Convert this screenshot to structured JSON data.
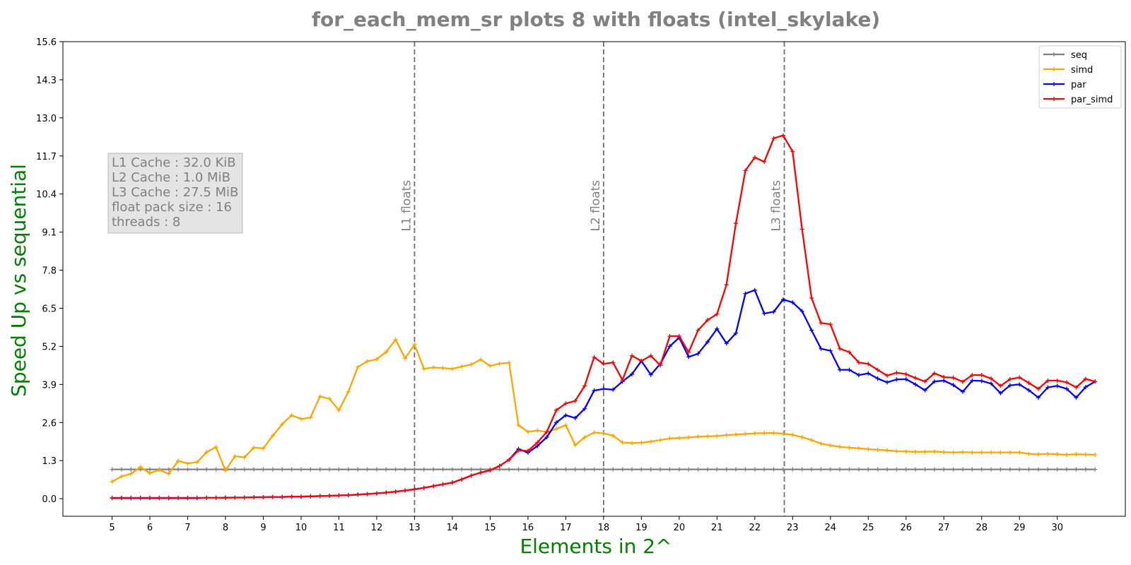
{
  "chart_data": {
    "type": "line",
    "title": "for_each_mem_sr plots 8 with floats  (intel_skylake)",
    "xlabel": "Elements in 2^",
    "ylabel": "Speed Up vs sequential",
    "xlim": [
      3.7,
      31.8
    ],
    "ylim": [
      -0.6,
      15.6
    ],
    "xticks": [
      5,
      6,
      7,
      8,
      9,
      10,
      11,
      12,
      13,
      14,
      15,
      16,
      17,
      18,
      19,
      20,
      21,
      22,
      23,
      24,
      25,
      26,
      27,
      28,
      29,
      30
    ],
    "yticks": [
      0.0,
      1.3,
      2.6,
      3.9,
      5.2,
      6.5,
      7.8,
      9.1,
      10.4,
      11.7,
      13.0,
      14.3,
      15.6
    ],
    "ytick_labels": [
      "0.0",
      "1.3",
      "2.6",
      "3.9",
      "5.2",
      "6.5",
      "7.8",
      "9.1",
      "10.4",
      "11.7",
      "13.0",
      "14.3",
      "15.6"
    ],
    "legend_position": "top-right",
    "grid": false,
    "x_start": 5,
    "x_step": 0.25,
    "vlines": [
      {
        "x": 13,
        "label": "L1 floats"
      },
      {
        "x": 18,
        "label": "L2 floats"
      },
      {
        "x": 22.78,
        "label": "L3 floats"
      }
    ],
    "info_box": [
      "L1 Cache : 32.0 KiB",
      "L2 Cache : 1.0 MiB",
      "L3 Cache : 27.5 MiB",
      "float pack size : 16",
      "threads : 8"
    ],
    "series": [
      {
        "name": "seq",
        "color": "#808080",
        "values": [
          1.0,
          1.0,
          1.0,
          1.0,
          1.0,
          1.0,
          1.0,
          1.0,
          1.0,
          1.0,
          1.0,
          1.0,
          1.0,
          1.0,
          1.0,
          1.0,
          1.0,
          1.0,
          1.0,
          1.0,
          1.0,
          1.0,
          1.0,
          1.0,
          1.0,
          1.0,
          1.0,
          1.0,
          1.0,
          1.0,
          1.0,
          1.0,
          1.0,
          1.0,
          1.0,
          1.0,
          1.0,
          1.0,
          1.0,
          1.0,
          1.0,
          1.0,
          1.0,
          1.0,
          1.0,
          1.0,
          1.0,
          1.0,
          1.0,
          1.0,
          1.0,
          1.0,
          1.0,
          1.0,
          1.0,
          1.0,
          1.0,
          1.0,
          1.0,
          1.0,
          1.0,
          1.0,
          1.0,
          1.0,
          1.0,
          1.0,
          1.0,
          1.0,
          1.0,
          1.0,
          1.0,
          1.0,
          1.0,
          1.0,
          1.0,
          1.0,
          1.0,
          1.0,
          1.0,
          1.0,
          1.0,
          1.0,
          1.0,
          1.0,
          1.0,
          1.0,
          1.0,
          1.0,
          1.0,
          1.0,
          1.0,
          1.0,
          1.0,
          1.0,
          1.0,
          1.0,
          1.0,
          1.0,
          1.0,
          1.0,
          1.0,
          1.0,
          1.0,
          1.0,
          1.0
        ]
      },
      {
        "name": "simd",
        "color": "#ffa500",
        "values": [
          0.58,
          0.76,
          0.85,
          1.08,
          0.87,
          0.98,
          0.85,
          1.29,
          1.2,
          1.25,
          1.59,
          1.76,
          0.96,
          1.45,
          1.41,
          1.74,
          1.72,
          2.15,
          2.54,
          2.85,
          2.72,
          2.77,
          3.49,
          3.41,
          3.02,
          3.65,
          4.49,
          4.69,
          4.76,
          5.01,
          5.43,
          4.79,
          5.26,
          4.43,
          4.48,
          4.46,
          4.43,
          4.51,
          4.58,
          4.75,
          4.53,
          4.61,
          4.64,
          2.51,
          2.28,
          2.33,
          2.27,
          2.38,
          2.51,
          1.83,
          2.09,
          2.26,
          2.23,
          2.15,
          1.92,
          1.9,
          1.91,
          1.95,
          2.0,
          2.06,
          2.07,
          2.09,
          2.12,
          2.13,
          2.14,
          2.17,
          2.19,
          2.21,
          2.23,
          2.24,
          2.24,
          2.22,
          2.18,
          2.1,
          2.0,
          1.88,
          1.82,
          1.77,
          1.74,
          1.72,
          1.69,
          1.67,
          1.65,
          1.62,
          1.61,
          1.6,
          1.6,
          1.61,
          1.59,
          1.58,
          1.59,
          1.58,
          1.58,
          1.58,
          1.58,
          1.58,
          1.58,
          1.53,
          1.52,
          1.53,
          1.52,
          1.5,
          1.52,
          1.51,
          1.5
        ]
      },
      {
        "name": "par",
        "color": "#0000ff",
        "values": [
          0.02,
          0.02,
          0.02,
          0.02,
          0.02,
          0.02,
          0.02,
          0.02,
          0.02,
          0.02,
          0.03,
          0.03,
          0.03,
          0.04,
          0.04,
          0.05,
          0.05,
          0.06,
          0.06,
          0.07,
          0.07,
          0.08,
          0.09,
          0.1,
          0.11,
          0.12,
          0.14,
          0.16,
          0.18,
          0.21,
          0.24,
          0.28,
          0.32,
          0.37,
          0.43,
          0.49,
          0.55,
          0.66,
          0.79,
          0.89,
          0.97,
          1.12,
          1.33,
          1.7,
          1.57,
          1.8,
          2.1,
          2.6,
          2.85,
          2.75,
          3.07,
          3.69,
          3.75,
          3.72,
          4.0,
          4.25,
          4.7,
          4.23,
          4.6,
          5.2,
          5.5,
          4.84,
          4.95,
          5.35,
          5.8,
          5.3,
          5.65,
          7.0,
          7.12,
          6.32,
          6.38,
          6.8,
          6.7,
          6.4,
          5.75,
          5.12,
          5.05,
          4.4,
          4.4,
          4.22,
          4.28,
          4.1,
          3.97,
          4.07,
          4.08,
          3.9,
          3.7,
          4.0,
          4.03,
          3.88,
          3.65,
          4.03,
          4.02,
          3.93,
          3.6,
          3.87,
          3.9,
          3.7,
          3.45,
          3.8,
          3.85,
          3.75,
          3.45,
          3.81,
          4.0
        ]
      },
      {
        "name": "par_simd",
        "color": "#ff0000",
        "values": [
          0.03,
          0.03,
          0.03,
          0.03,
          0.03,
          0.03,
          0.03,
          0.03,
          0.03,
          0.03,
          0.03,
          0.03,
          0.04,
          0.04,
          0.04,
          0.05,
          0.05,
          0.06,
          0.06,
          0.07,
          0.07,
          0.08,
          0.09,
          0.1,
          0.11,
          0.12,
          0.14,
          0.16,
          0.18,
          0.21,
          0.24,
          0.28,
          0.32,
          0.37,
          0.43,
          0.49,
          0.55,
          0.66,
          0.79,
          0.89,
          0.97,
          1.12,
          1.33,
          1.65,
          1.63,
          1.92,
          2.28,
          3.02,
          3.25,
          3.34,
          3.85,
          4.83,
          4.6,
          4.65,
          4.05,
          4.88,
          4.7,
          4.88,
          4.55,
          5.55,
          5.55,
          5.0,
          5.75,
          6.1,
          6.3,
          7.3,
          9.4,
          11.2,
          11.65,
          11.5,
          12.3,
          12.4,
          11.85,
          9.2,
          6.85,
          6.0,
          5.95,
          5.12,
          5.0,
          4.65,
          4.6,
          4.4,
          4.2,
          4.3,
          4.25,
          4.12,
          4.0,
          4.28,
          4.15,
          4.13,
          3.99,
          4.22,
          4.22,
          4.1,
          3.85,
          4.08,
          4.14,
          3.95,
          3.75,
          4.03,
          4.03,
          3.97,
          3.8,
          4.09,
          4.0
        ]
      }
    ]
  }
}
